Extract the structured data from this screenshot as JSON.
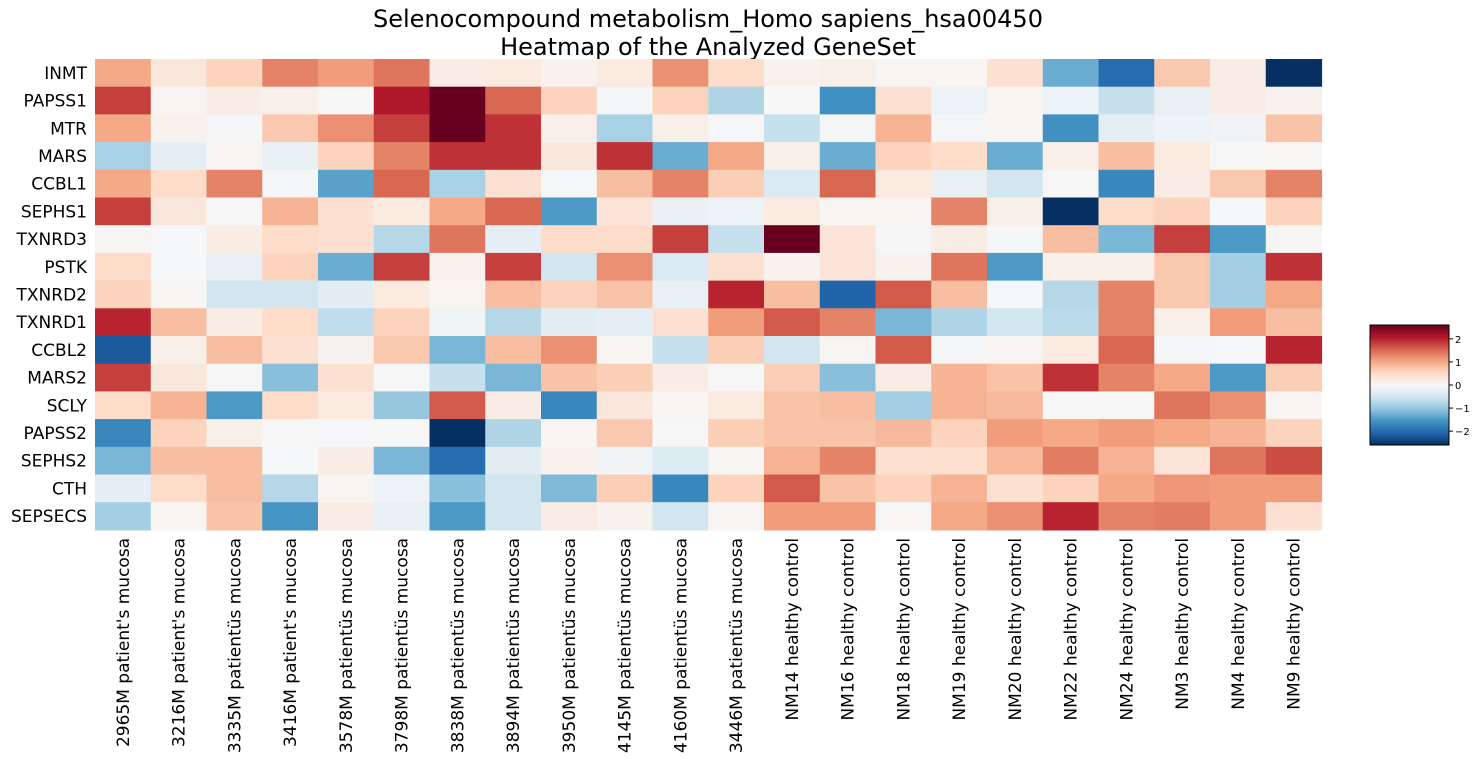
{
  "chart_data": {
    "type": "heatmap",
    "title_line1": "Selenocompound metabolism_Homo sapiens_hsa00450",
    "title_line2": "Heatmap of the Analyzed GeneSet",
    "rows": [
      "INMT",
      "PAPSS1",
      "MTR",
      "MARS",
      "CCBL1",
      "SEPHS1",
      "TXNRD3",
      "PSTK",
      "TXNRD2",
      "TXNRD1",
      "CCBL2",
      "MARS2",
      "SCLY",
      "PAPSS2",
      "SEPHS2",
      "CTH",
      "SEPSECS"
    ],
    "columns": [
      "2965M patient's mucosa",
      "3216M patient's mucosa",
      "3335M patientüs mucosa",
      "3416M patient's mucosa",
      "3578M patientüs mucosa",
      "3798M patientüs mucosa",
      "3838M patientüs mucosa",
      "3894M patientüs mucosa",
      "3950M patientüs mucosa",
      "4145M patientüs mucosa",
      "4160M patientüs mucosa",
      "3446M patientüs mucosa",
      "NM14 healthy control",
      "NM16 healthy control",
      "NM18 healthy control",
      "NM19 healthy control",
      "NM20 healthy control",
      "NM22 healthy control",
      "NM24 healthy control",
      "NM3 healthy control",
      "NM4 healthy control",
      "NM9 healthy control"
    ],
    "values": [
      [
        1.0,
        0.3,
        0.6,
        1.3,
        1.1,
        1.4,
        0.2,
        0.25,
        0.1,
        0.25,
        1.2,
        0.5,
        0.1,
        0.15,
        0.05,
        0.05,
        0.4,
        -1.3,
        -2.0,
        0.7,
        0.2,
        -2.6
      ],
      [
        1.8,
        0.05,
        0.2,
        0.15,
        0.0,
        2.1,
        3.0,
        1.5,
        0.6,
        -0.05,
        0.6,
        -0.8,
        0.0,
        -1.6,
        0.4,
        -0.15,
        0.05,
        -0.15,
        -0.6,
        -0.2,
        0.2,
        0.1
      ],
      [
        1.0,
        0.1,
        -0.05,
        0.7,
        1.2,
        1.8,
        2.9,
        1.9,
        0.15,
        -0.85,
        0.15,
        -0.03,
        -0.6,
        -0.05,
        0.9,
        -0.05,
        0.05,
        -1.6,
        -0.25,
        -0.15,
        -0.1,
        0.75
      ],
      [
        -0.85,
        -0.25,
        0.05,
        -0.2,
        0.6,
        1.3,
        1.9,
        1.9,
        0.3,
        1.9,
        -1.3,
        1.0,
        0.15,
        -1.3,
        0.6,
        0.5,
        -1.3,
        0.15,
        0.8,
        0.25,
        -0.02,
        0.02
      ],
      [
        1.0,
        0.5,
        1.3,
        -0.05,
        -1.4,
        1.5,
        -0.85,
        0.4,
        -0.03,
        0.8,
        1.3,
        0.65,
        -0.4,
        1.5,
        0.25,
        -0.2,
        -0.5,
        -0.02,
        -1.7,
        0.2,
        0.7,
        1.3
      ],
      [
        1.8,
        0.3,
        0.0,
        0.9,
        0.4,
        0.25,
        1.0,
        1.5,
        -1.5,
        0.35,
        -0.2,
        -0.15,
        0.25,
        0.05,
        0.05,
        1.3,
        0.15,
        -3.0,
        0.5,
        0.6,
        -0.03,
        0.6
      ],
      [
        0.03,
        -0.03,
        0.2,
        0.5,
        0.4,
        -0.75,
        1.4,
        -0.25,
        0.5,
        0.5,
        1.8,
        -0.6,
        2.9,
        0.35,
        -0.05,
        0.2,
        -0.05,
        0.8,
        -1.2,
        1.8,
        -1.5,
        0.03
      ],
      [
        0.5,
        -0.03,
        -0.2,
        0.6,
        -1.3,
        1.8,
        0.1,
        1.8,
        -0.5,
        1.2,
        -0.4,
        0.4,
        0.1,
        0.35,
        0.1,
        1.4,
        -1.5,
        0.15,
        0.15,
        0.7,
        -0.9,
        1.9
      ],
      [
        0.6,
        0.03,
        -0.5,
        -0.5,
        -0.3,
        0.25,
        0.05,
        0.8,
        0.6,
        0.75,
        -0.2,
        2.0,
        0.8,
        -2.1,
        1.6,
        0.8,
        -0.03,
        -0.75,
        1.3,
        0.7,
        -0.9,
        1.0
      ],
      [
        2.0,
        0.8,
        0.2,
        0.5,
        -0.65,
        0.6,
        -0.1,
        -0.75,
        -0.3,
        -0.25,
        0.4,
        1.1,
        1.6,
        1.3,
        -1.2,
        -0.8,
        -0.5,
        -0.7,
        1.3,
        0.15,
        1.1,
        0.8
      ],
      [
        -2.2,
        0.15,
        0.8,
        0.4,
        0.1,
        0.7,
        -1.2,
        0.8,
        1.2,
        0.05,
        -0.6,
        0.65,
        -0.5,
        0.05,
        1.6,
        -0.05,
        0.05,
        0.25,
        1.5,
        -0.05,
        -0.03,
        2.0
      ],
      [
        1.8,
        0.3,
        -0.02,
        -1.1,
        0.4,
        -0.02,
        -0.6,
        -1.2,
        0.75,
        0.65,
        0.2,
        -0.02,
        0.65,
        -1.1,
        0.2,
        0.9,
        0.75,
        1.9,
        1.3,
        1.0,
        -1.5,
        0.65
      ],
      [
        0.5,
        0.9,
        -1.5,
        0.5,
        0.25,
        -1.0,
        1.6,
        0.2,
        -1.7,
        0.3,
        0.05,
        0.25,
        0.75,
        0.8,
        -0.9,
        0.9,
        0.85,
        -0.02,
        -0.02,
        1.4,
        1.2,
        0.05
      ],
      [
        -1.7,
        0.6,
        0.15,
        -0.02,
        -0.03,
        -0.02,
        -2.7,
        -0.8,
        0.05,
        0.7,
        -0.02,
        0.65,
        0.75,
        0.75,
        0.85,
        0.6,
        1.1,
        1.0,
        1.1,
        1.0,
        0.9,
        0.6
      ],
      [
        -1.2,
        0.8,
        0.8,
        -0.03,
        0.2,
        -1.2,
        -2.0,
        -0.3,
        0.1,
        -0.1,
        -0.35,
        0.03,
        0.9,
        1.3,
        0.4,
        0.45,
        0.85,
        1.35,
        0.9,
        0.35,
        1.4,
        1.7
      ],
      [
        -0.25,
        0.5,
        0.8,
        -0.75,
        0.05,
        -0.15,
        -1.1,
        -0.5,
        -1.15,
        0.65,
        -1.7,
        0.6,
        1.6,
        0.75,
        0.6,
        0.9,
        0.4,
        0.6,
        1.0,
        1.15,
        1.1,
        1.1
      ],
      [
        -0.9,
        0.05,
        0.75,
        -1.55,
        0.2,
        -0.2,
        -1.5,
        -0.5,
        0.2,
        0.1,
        -0.5,
        0.05,
        1.1,
        1.1,
        0.02,
        1.0,
        1.2,
        2.0,
        1.3,
        1.35,
        1.1,
        0.4
      ]
    ],
    "colorbar": {
      "colormap": "RdBu_r",
      "range": [
        -2.6,
        2.6
      ],
      "ticks": [
        2,
        1,
        0,
        -1,
        -2
      ],
      "tick_labels": [
        "2",
        "1",
        "0",
        "−1",
        "−2"
      ]
    },
    "colors": {
      "low": "#053061",
      "mid": "#f7f7f7",
      "high": "#67001f"
    }
  }
}
